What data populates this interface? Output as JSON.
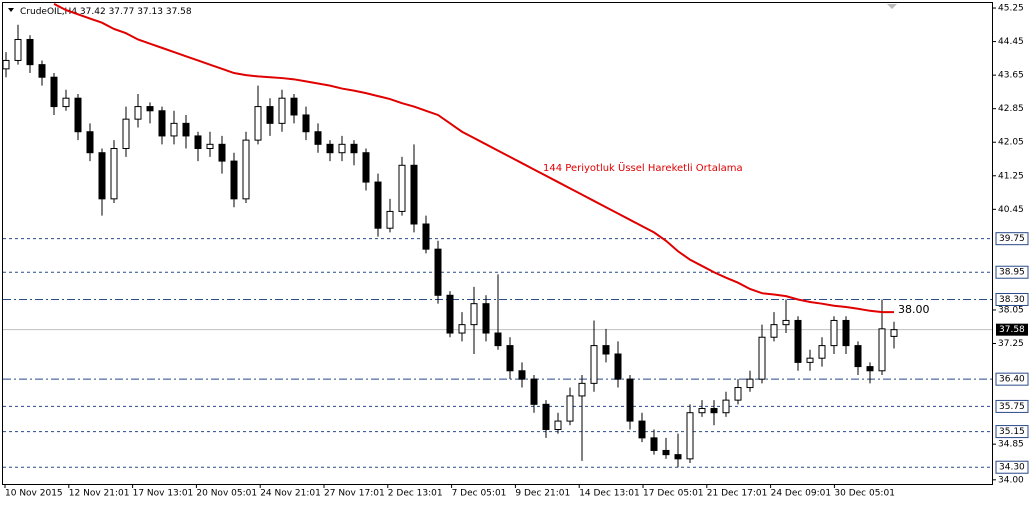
{
  "chart_data": {
    "type": "candlestick",
    "title": "CrudeOIL,H4",
    "ohlc_header": [
      37.42,
      37.77,
      37.13,
      37.58
    ],
    "time_labels": [
      "10 Nov 2015",
      "12 Nov 21:01",
      "17 Nov 13:01",
      "20 Nov 05:01",
      "24 Nov 21:01",
      "27 Nov 17:01",
      "2 Dec 13:01",
      "7 Dec 05:01",
      "9 Dec 21:01",
      "14 Dec 13:01",
      "17 Dec 05:01",
      "21 Dec 17:01",
      "24 Dec 09:01",
      "30 Dec 05:01"
    ],
    "ylim": [
      33.9,
      45.37
    ],
    "yticks": [
      45.25,
      44.45,
      43.65,
      42.85,
      42.05,
      41.25,
      40.45,
      38.05,
      37.25,
      34.85,
      {
        "value": 34,
        "label": "34.00"
      }
    ],
    "grid": false,
    "candles": {
      "open": [
        43.8,
        44.0,
        44.5,
        43.9,
        43.6,
        42.9,
        43.1,
        42.3,
        41.8,
        40.7,
        41.9,
        42.6,
        42.9,
        42.8,
        42.2,
        42.5,
        42.2,
        41.9,
        42.0,
        41.6,
        40.7,
        42.1,
        42.9,
        42.5,
        43.1,
        42.7,
        42.3,
        42.0,
        41.8,
        42.0,
        41.8,
        41.1,
        40.0,
        40.4,
        41.5,
        40.1,
        39.5,
        38.4,
        37.5,
        37.7,
        38.2,
        37.5,
        37.2,
        36.6,
        36.4,
        35.8,
        35.2,
        35.4,
        36.0,
        36.3,
        37.2,
        37.0,
        36.4,
        35.4,
        35.0,
        34.7,
        34.6,
        34.5,
        35.6,
        35.7,
        35.6,
        35.9,
        36.2,
        36.4,
        37.4,
        37.7,
        37.8,
        36.8,
        36.9,
        37.2,
        37.8,
        37.2,
        36.7,
        36.6,
        37.42
      ],
      "high": [
        44.2,
        44.85,
        44.6,
        44.0,
        43.7,
        43.3,
        43.2,
        42.5,
        41.9,
        42.1,
        42.9,
        43.2,
        43.0,
        42.9,
        42.8,
        42.7,
        42.3,
        42.3,
        42.2,
        41.8,
        42.3,
        43.4,
        43.1,
        43.3,
        43.2,
        42.9,
        42.5,
        42.1,
        42.2,
        42.1,
        41.9,
        41.3,
        40.7,
        41.7,
        42.0,
        40.3,
        39.7,
        38.5,
        38.0,
        38.6,
        38.4,
        38.9,
        37.4,
        36.8,
        36.5,
        35.9,
        35.6,
        36.2,
        36.5,
        37.8,
        37.6,
        37.3,
        36.5,
        35.6,
        35.2,
        35.0,
        35.1,
        35.8,
        35.9,
        35.9,
        36.1,
        36.4,
        36.6,
        37.7,
        38.0,
        38.3,
        37.9,
        37.1,
        37.4,
        37.9,
        37.9,
        37.3,
        36.8,
        38.3,
        37.77
      ],
      "low": [
        43.6,
        43.9,
        43.7,
        43.4,
        42.7,
        42.8,
        42.1,
        41.6,
        40.3,
        40.6,
        41.7,
        42.4,
        42.5,
        42.0,
        42.0,
        41.9,
        41.6,
        41.7,
        41.3,
        40.5,
        40.6,
        42.0,
        42.2,
        42.3,
        42.5,
        42.1,
        41.8,
        41.6,
        41.6,
        41.5,
        40.9,
        39.8,
        39.9,
        40.3,
        39.9,
        39.4,
        38.2,
        37.4,
        37.3,
        37.0,
        37.3,
        37.1,
        36.4,
        36.2,
        35.6,
        35.0,
        35.1,
        35.3,
        34.45,
        36.1,
        36.8,
        36.2,
        35.2,
        34.9,
        34.6,
        34.5,
        34.3,
        34.4,
        35.5,
        35.3,
        35.5,
        35.8,
        36.1,
        36.3,
        37.3,
        37.5,
        36.6,
        36.6,
        36.7,
        37.0,
        37.0,
        36.5,
        36.3,
        36.5,
        37.13
      ],
      "close": [
        44.0,
        44.5,
        43.9,
        43.6,
        42.9,
        43.1,
        42.3,
        41.8,
        40.7,
        41.9,
        42.6,
        42.9,
        42.8,
        42.2,
        42.5,
        42.2,
        41.9,
        42.0,
        41.6,
        40.7,
        42.1,
        42.9,
        42.5,
        43.1,
        42.7,
        42.3,
        42.0,
        41.8,
        42.0,
        41.8,
        41.1,
        40.0,
        40.4,
        41.5,
        40.1,
        39.5,
        38.4,
        37.5,
        37.7,
        38.2,
        37.5,
        37.2,
        36.6,
        36.4,
        35.8,
        35.2,
        35.4,
        36.0,
        36.3,
        37.2,
        37.0,
        36.4,
        35.4,
        35.0,
        34.7,
        34.6,
        34.5,
        35.6,
        35.7,
        35.6,
        35.9,
        36.2,
        36.4,
        37.4,
        37.7,
        37.8,
        36.8,
        36.9,
        37.2,
        37.8,
        37.2,
        36.7,
        36.6,
        37.6,
        37.58
      ]
    },
    "ema": {
      "label": "144 Periyotluk Üssel Hareketli Ortalama",
      "color": "#e00000",
      "values": [
        null,
        null,
        null,
        null,
        45.35,
        45.2,
        45.1,
        45.0,
        44.9,
        44.75,
        44.65,
        44.5,
        44.4,
        44.3,
        44.2,
        44.1,
        44.0,
        43.9,
        43.8,
        43.7,
        43.65,
        43.62,
        43.6,
        43.58,
        43.55,
        43.5,
        43.45,
        43.4,
        43.33,
        43.28,
        43.22,
        43.15,
        43.08,
        42.98,
        42.9,
        42.8,
        42.7,
        42.5,
        42.3,
        42.15,
        42.0,
        41.85,
        41.7,
        41.55,
        41.4,
        41.25,
        41.1,
        40.95,
        40.8,
        40.65,
        40.5,
        40.35,
        40.2,
        40.05,
        39.9,
        39.7,
        39.45,
        39.25,
        39.1,
        38.95,
        38.82,
        38.7,
        38.55,
        38.45,
        38.42,
        38.38,
        38.3,
        38.24,
        38.2,
        38.15,
        38.12,
        38.08,
        38.03,
        38.0,
        38.0
      ],
      "end_label": {
        "value": 38,
        "label": "38.00"
      }
    },
    "levels": [
      {
        "value": 39.75,
        "style": "dashed"
      },
      {
        "value": 38.95,
        "style": "dashed"
      },
      {
        "value": {
          "value": 38.3,
          "label": "38.30"
        },
        "style": "dashdot"
      },
      {
        "value": {
          "value": 36.4,
          "label": "36.40"
        },
        "style": "dashdot"
      },
      {
        "value": 35.75,
        "style": "dashed"
      },
      {
        "value": 35.15,
        "style": "dashed"
      },
      {
        "value": {
          "value": 34.3,
          "label": "34.30"
        },
        "style": "dashed"
      }
    ],
    "current_price": 37.58
  }
}
